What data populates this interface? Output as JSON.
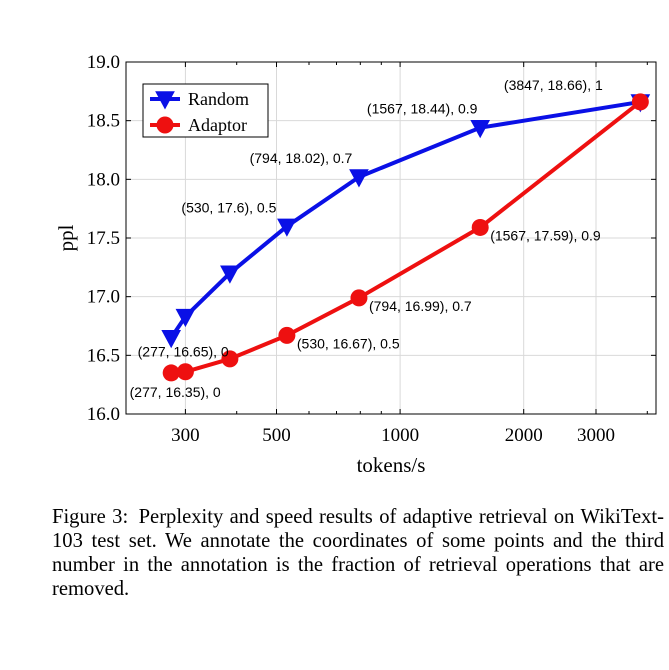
{
  "chart_data": {
    "type": "line",
    "xscale": "log",
    "xlabel": "tokens/s",
    "ylabel": "ppl",
    "xlim": [
      215,
      4200
    ],
    "ylim": [
      16.0,
      19.0
    ],
    "xticks": [
      300,
      500,
      1000,
      2000,
      3000
    ],
    "xtick_labels": [
      "300",
      "500",
      "1000",
      "2000",
      "3000"
    ],
    "yticks": [
      16.0,
      16.5,
      17.0,
      17.5,
      18.0,
      18.5,
      19.0
    ],
    "ytick_labels": [
      "16.0",
      "16.5",
      "17.0",
      "17.5",
      "18.0",
      "18.5",
      "19.0"
    ],
    "grid": true,
    "legend_position": "top-left",
    "series": [
      {
        "name": "Random",
        "color": "#0a10e6",
        "marker": "triangle-down",
        "x": [
          277,
          300,
          385,
          530,
          794,
          1567,
          3847
        ],
        "y": [
          16.65,
          16.83,
          17.2,
          17.6,
          18.02,
          18.44,
          18.66
        ]
      },
      {
        "name": "Adaptor",
        "color": "#ee1010",
        "marker": "circle",
        "x": [
          277,
          300,
          385,
          530,
          794,
          1567,
          3847
        ],
        "y": [
          16.35,
          16.36,
          16.47,
          16.67,
          16.99,
          17.59,
          18.66
        ]
      }
    ],
    "annotations": [
      {
        "text": "(277, 16.65), 0",
        "series": "Random",
        "point": 0,
        "side": "left"
      },
      {
        "text": "(530, 17.6), 0.5",
        "series": "Random",
        "point": 3,
        "side": "left"
      },
      {
        "text": "(794, 18.02), 0.7",
        "series": "Random",
        "point": 4,
        "side": "left"
      },
      {
        "text": "(1567, 18.44), 0.9",
        "series": "Random",
        "point": 5,
        "side": "left"
      },
      {
        "text": "(3847, 18.66), 1",
        "series": "Random",
        "point": 6,
        "side": "left"
      },
      {
        "text": "(277, 16.35), 0",
        "series": "Adaptor",
        "point": 0,
        "side": "below"
      },
      {
        "text": "(530, 16.67), 0.5",
        "series": "Adaptor",
        "point": 3,
        "side": "right"
      },
      {
        "text": "(794, 16.99), 0.7",
        "series": "Adaptor",
        "point": 4,
        "side": "right"
      },
      {
        "text": "(1567, 17.59), 0.9",
        "series": "Adaptor",
        "point": 5,
        "side": "right"
      }
    ]
  },
  "caption": {
    "label": "Figure 3:",
    "text": "Perplexity and speed results of adaptive retrieval on WikiText-103 test set. We annotate the coordinates of some points and the third number in the annotation is the fraction of retrieval operations that are removed."
  }
}
